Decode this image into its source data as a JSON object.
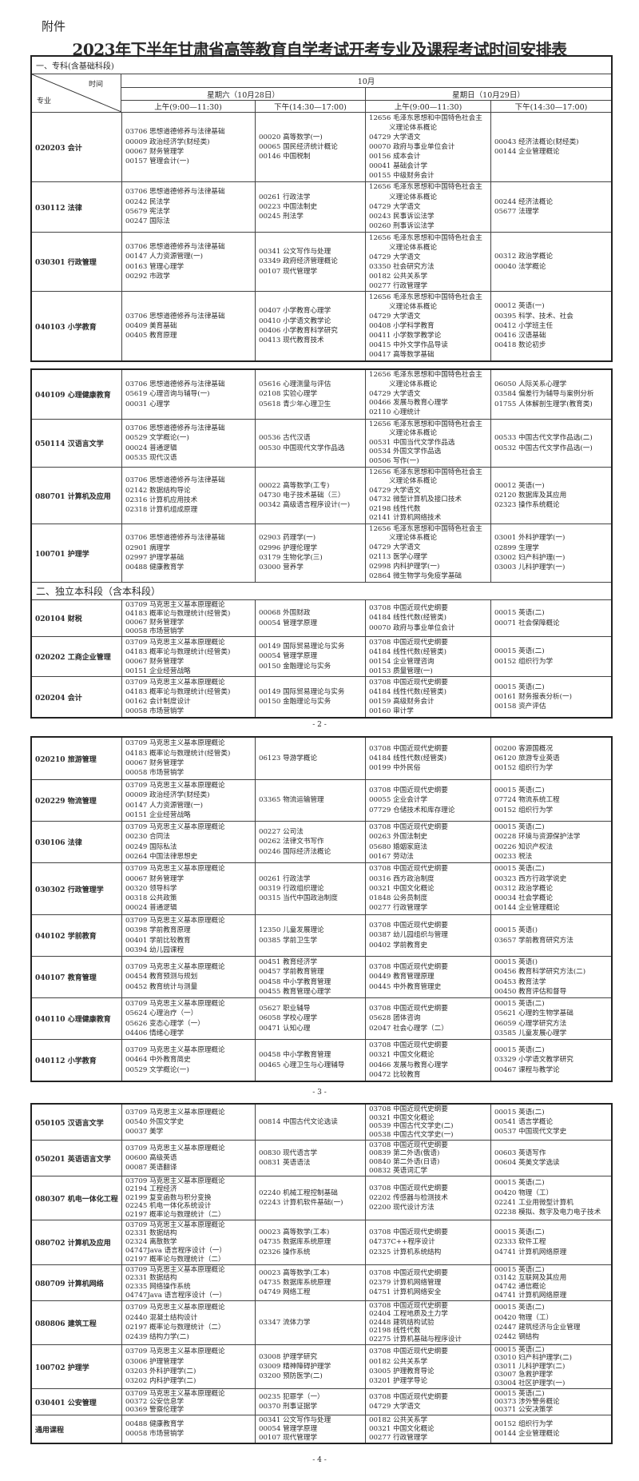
{
  "attachment_label": "附件",
  "title": "2023年下半年甘肃省高等教育自学考试开考专业及课程考试时间安排表",
  "header": {
    "time_label": "时间",
    "major_label": "专业",
    "month": "10月",
    "days": [
      "星期六（10月28日）",
      "星期日（10月29日）"
    ],
    "slots": [
      "上午(9:00—11:30)",
      "下午(14:30—17:00)"
    ]
  },
  "page_numbers": [
    "- 2 -",
    "- 3 -",
    "- 4 -"
  ],
  "tables": [
    {
      "rows": [
        {
          "section": "一、专科(含基础科段)"
        },
        {
          "major": "020203 会计",
          "cells": [
            [
              "03706 思想道德修养与法律基础",
              "00009 政治经济学(财经类)",
              "00067 财务管理学",
              "00157 管理会计(一)"
            ],
            [
              "00020 高等数学(一)",
              "00065 国民经济统计概论",
              "00146 中国税制"
            ],
            [
              "12656 毛泽东思想和中国特色社会主义理论体系概论",
              "04729 大学语文",
              "00070 政府与事业单位会计",
              "00156 成本会计",
              "00041 基础会计学",
              "00155 中级财务会计"
            ],
            [
              "00043 经济法概论(财经类)",
              "00144 企业管理概论"
            ]
          ]
        },
        {
          "major": "030112 法律",
          "cells": [
            [
              "03706 思想道德修养与法律基础",
              "00242 民法学",
              "05679 宪法学",
              "00247 国际法"
            ],
            [
              "00261 行政法学",
              "00223 中国法制史",
              "00245 刑法学"
            ],
            [
              "12656 毛泽东思想和中国特色社会主义理论体系概论",
              "04729 大学语文",
              "00243 民事诉讼法学",
              "00260 刑事诉讼法学"
            ],
            [
              "00244 经济法概论",
              "05677 法理学"
            ]
          ]
        },
        {
          "major": "030301 行政管理",
          "cells": [
            [
              "03706 思想道德修养与法律基础",
              "00147 人力资源管理(一)",
              "00163 管理心理学",
              "00292 市政学"
            ],
            [
              "00341 公文写作与处理",
              "03349 政府经济管理概论",
              "00107 现代管理学"
            ],
            [
              "12656 毛泽东思想和中国特色社会主义理论体系概论",
              "04729 大学语文",
              "03350 社会研究方法",
              "00182 公共关系学",
              "00277 行政管理学"
            ],
            [
              "00312 政治学概论",
              "00040 法学概论"
            ]
          ]
        },
        {
          "major": "040103 小学教育",
          "cells": [
            [
              "03706 思想道德修养与法律基础",
              "00409 美育基础",
              "00405 教育原理"
            ],
            [
              "00407 小学教育心理学",
              "00410 小学语文教学论",
              "00406 小学教育科学研究",
              "00413 现代教育技术"
            ],
            [
              "12656 毛泽东思想和中国特色社会主义理论体系概论",
              "04729 大学语文",
              "00408 小学科学教育",
              "00411 小学数学教学论",
              "00415 中外文学作品导读",
              "00417 高等数学基础"
            ],
            [
              "00012 英语(一)",
              "00395 科学、技术、社会",
              "00412 小学班主任",
              "00416 汉语基础",
              "00418 数论初步"
            ]
          ]
        }
      ]
    },
    {
      "rows": [
        {
          "major": "040109 心理健康教育",
          "cells": [
            [
              "03706 思想道德修养与法律基础",
              "05619 心理咨询与辅导(一)",
              "00031 心理学"
            ],
            [
              "05616 心理测量与评估",
              "02108 实验心理学",
              "05618 青少年心理卫生"
            ],
            [
              "12656 毛泽东思想和中国特色社会主义理论体系概论",
              "04729 大学语文",
              "00466 发展与教育心理学",
              "02110 心理统计"
            ],
            [
              "06050 人际关系心理学",
              "03584 偏差行为辅导与案例分析",
              "01755 人体解剖生理学(教育类)"
            ]
          ]
        },
        {
          "major": "050114 汉语言文学",
          "cells": [
            [
              "03706 思想道德修养与法律基础",
              "00529 文学概论(一)",
              "00024 普通逻辑",
              "00535 现代汉语"
            ],
            [
              "00536 古代汉语",
              "00530 中国现代文学作品选"
            ],
            [
              "12656 毛泽东思想和中国特色社会主义理论体系概论",
              "00531 中国当代文学作品选",
              "00534 外国文学作品选",
              "00506 写作(一)"
            ],
            [
              "00533 中国古代文学作品选(二)",
              "00532 中国古代文学作品选(一)"
            ]
          ]
        },
        {
          "major": "080701 计算机及应用",
          "cells": [
            [
              "03706 思想道德修养与法律基础",
              "02142 数据结构导论",
              "02316 计算机应用技术",
              "02318 计算机组成原理"
            ],
            [
              "00022 高等数学(工专)",
              "04730 电子技术基础（三）",
              "00342 高级语言程序设计(一)"
            ],
            [
              "12656 毛泽东思想和中国特色社会主义理论体系概论",
              "04729 大学语文",
              "04732 微型计算机及接口技术",
              "02198 线性代数",
              "02141 计算机网络技术"
            ],
            [
              "00012 英语(一)",
              "02120 数据库及其应用",
              "02323 操作系统概论"
            ]
          ]
        },
        {
          "major": "100701 护理学",
          "cells": [
            [
              "03706 思想道德修养与法律基础",
              "02901 病理学",
              "02997 护理学基础",
              "00488 健康教育学"
            ],
            [
              "02903 药理学(一)",
              "02996 护理伦理学",
              "03179 生物化学(三)",
              "03000 营养学"
            ],
            [
              "12656 毛泽东思想和中国特色社会主义理论体系概论",
              "04729 大学语文",
              "02113 医学心理学",
              "02998 内科护理学(一)",
              "02864 微生物学与免疫学基础"
            ],
            [
              "03001 外科护理学(一)",
              "02899 生理学",
              "03002 妇产科护理(一)",
              "03003 儿科护理学(一)"
            ]
          ]
        },
        {
          "section": "二、独立本科段（含本科段）"
        },
        {
          "major": "020104 财税",
          "cells": [
            [
              "03709 马克思主义基本原理概论",
              "04183 概率论与数理统计(经管类)",
              "00067 财务管理学",
              "00058 市场营销学"
            ],
            [
              "00068 外国财政",
              "00054 管理学原理"
            ],
            [
              "03708 中国近现代史纲要",
              "04184 线性代数(经管类)",
              "00070 政府与事业单位会计"
            ],
            [
              "00015 英语(二)",
              "00071 社会保障概论"
            ]
          ]
        },
        {
          "major": "020202 工商企业管理",
          "cells": [
            [
              "03709 马克思主义基本原理概论",
              "04183 概率论与数理统计(经管类)",
              "00067 财务管理学",
              "00151 企业经营战略"
            ],
            [
              "00149 国际贸易理论与实务",
              "00054 管理学原理",
              "00150 金融理论与实务"
            ],
            [
              "03708 中国近现代史纲要",
              "04184 线性代数(经管类)",
              "00154 企业管理咨询",
              "00153 质量管理(一)"
            ],
            [
              "00015 英语(二)",
              "00152 组织行为学"
            ]
          ]
        },
        {
          "major": "020204 会计",
          "cells": [
            [
              "03709 马克思主义基本原理概论",
              "04183 概率论与数理统计(经管类)",
              "00162 会计制度设计",
              "00058 市场营销学"
            ],
            [
              "00149 国际贸易理论与实务",
              "00150 金融理论与实务"
            ],
            [
              "03708 中国近现代史纲要",
              "04184 线性代数(经管类)",
              "00159 高级财务会计",
              "00160 审计学"
            ],
            [
              "00015 英语(二)",
              "00161 财务报表分析(一)",
              "00158 资产评估"
            ]
          ]
        }
      ]
    },
    {
      "rows": [
        {
          "major": "020210 旅游管理",
          "cells": [
            [
              "03709 马克思主义基本原理概论",
              "04183 概率论与数理统计(经管类)",
              "00067 财务管理学",
              "00058 市场营销学"
            ],
            [
              "06123 导游学概论"
            ],
            [
              "03708 中国近现代史纲要",
              "04184 线性代数(经管类)",
              "00199 中外民俗"
            ],
            [
              "00200 客源国概况",
              "06120 旅游专业英语",
              "00152 组织行为学"
            ]
          ]
        },
        {
          "major": "020229 物流管理",
          "cells": [
            [
              "03709 马克思主义基本原理概论",
              "00009 政治经济学(财经类)",
              "00147 人力资源管理(一)",
              "00151 企业经营战略"
            ],
            [
              "03365 物流运输管理"
            ],
            [
              "03708 中国近现代史纲要",
              "00055 企业会计学",
              "07729 仓储技术和库存理论"
            ],
            [
              "00015 英语(二)",
              "07724 物流系统工程",
              "00152 组织行为学"
            ]
          ]
        },
        {
          "major": "030106 法律",
          "cells": [
            [
              "03709 马克思主义基本原理概论",
              "00230 合同法",
              "00249 国际私法",
              "00264 中国法律思想史"
            ],
            [
              "00227 公司法",
              "00262 法律文书写作",
              "00246 国际经济法概论"
            ],
            [
              "03708 中国近现代史纲要",
              "00263 外国法制史",
              "05680 婚姻家庭法",
              "00167 劳动法"
            ],
            [
              "00015 英语(二)",
              "00228 环境与资源保护法学",
              "00226 知识产权法",
              "00233 税法"
            ]
          ]
        },
        {
          "major": "030302 行政管理学",
          "cells": [
            [
              "03709 马克思主义基本原理概论",
              "00067 财务管理学",
              "00320 领导科学",
              "00318 公共政策",
              "00024 普通逻辑"
            ],
            [
              "00261 行政法学",
              "00319 行政组织理论",
              "00315 当代中国政治制度"
            ],
            [
              "03708 中国近现代史纲要",
              "00316 西方政治制度",
              "00321 中国文化概论",
              "01848 公务员制度",
              "00277 行政管理学"
            ],
            [
              "00015 英语(二)",
              "00323 西方行政学说史",
              "00312 政治学概论",
              "00034 社会学概论",
              "00144 企业管理概论"
            ]
          ]
        },
        {
          "major": "040102 学前教育",
          "cells": [
            [
              "03709 马克思主义基本原理概论",
              "00398 学前教育原理",
              "00401 学前比较教育",
              "00394 幼儿园课程"
            ],
            [
              "12350 儿童发展理论",
              "00385 学前卫生学"
            ],
            [
              "03708 中国近现代史纲要",
              "00387 幼儿园组织与管理",
              "00402 学前教育史"
            ],
            [
              "00015 英语()",
              "03657 学前教育研究方法"
            ]
          ]
        },
        {
          "major": "040107 教育管理",
          "cells": [
            [
              "03709 马克思主义基本原理概论",
              "00454 教育预测与规划",
              "00452 教育统计与测量"
            ],
            [
              "00451 教育经济学",
              "00457 学前教育管理",
              "00458 中小学教育管理",
              "00455 教育管理心理学"
            ],
            [
              "03708 中国近现代史纲要",
              "00449 教育管理原理",
              "00445 中外教育管理史"
            ],
            [
              "00015 英语()",
              "00456 教育科学研究方法(二)",
              "00453 教育法学",
              "00450 教育评估和督导"
            ]
          ]
        },
        {
          "major": "040110 心理健康教育",
          "cells": [
            [
              "03709 马克思主义基本原理概论",
              "05624 心理治疗（一）",
              "05626 变态心理学（一）",
              "04406 情绪心理学"
            ],
            [
              "05627 职业辅导",
              "06058 学校心理学",
              "00471 认知心理"
            ],
            [
              "03708 中国近现代史纲要",
              "05628 团体咨询",
              "02047 社会心理学（二）"
            ],
            [
              "00015 英语(二)",
              "05621 心理的生物学基础",
              "06059 心理学研究方法",
              "03585 儿童发展心理学"
            ]
          ]
        },
        {
          "major": "040112 小学教育",
          "cells": [
            [
              "03709 马克思主义基本原理概论",
              "00464 中外教育简史",
              "00529 文学概论(一)"
            ],
            [
              "00458 中小学教育管理",
              "00465 心理卫生与心理辅导"
            ],
            [
              "03708 中国近现代史纲要",
              "00321 中国文化概论",
              "00466 发展与教育心理学",
              "00472 比较教育"
            ],
            [
              "00015 英语(二)",
              "03329 小学语文教学研究",
              "00467 课程与教学论"
            ]
          ]
        }
      ]
    },
    {
      "rows": [
        {
          "major": "050105 汉语言文学",
          "cells": [
            [
              "03709 马克思主义基本原理概论",
              "00540 外国文学史",
              "00037 美学"
            ],
            [
              "00814 中国古代文论选读"
            ],
            [
              "03708 中国近现代史纲要",
              "00321 中国文化概论",
              "00539 中国古代文学史(二)",
              "00538 中国古代文学史(一)"
            ],
            [
              "00015 英语(二)",
              "00541 语言学概论",
              "00537 中国现代文学史"
            ]
          ]
        },
        {
          "major": "050201 英语语言文学",
          "cells": [
            [
              "03709 马克思主义基本原理概论",
              "00600 高级英语",
              "00087 英语翻译"
            ],
            [
              "00830 现代语言学",
              "00831 英语语法"
            ],
            [
              "03708 中国近现代史纲要",
              "00839 第二外语(俄语)",
              "00840 第二外语(日语)",
              "00832 英语词汇学"
            ],
            [
              "00603 英语写作",
              "00604 英美文学选读"
            ]
          ]
        },
        {
          "major": "080307 机电一体化工程",
          "cells": [
            [
              "03709 马克思主义基本原理概论",
              "02194 工程经济",
              "02199 复变函数与积分变换",
              "02245 机电一体化系统设计",
              "02197 概率论与数理统计（二）"
            ],
            [
              "02240 机械工程控制基础",
              "02243 计算机软件基础(一)"
            ],
            [
              "03708 中国近现代史纲要",
              "02202 传感器与检测技术",
              "02200 现代设计方法"
            ],
            [
              "00015 英语(二)",
              "00420 物理（工）",
              "02241 工业用微型计算机",
              "02238 模拟、数字及电力电子技术"
            ]
          ]
        },
        {
          "major": "080702 计算机及应用",
          "cells": [
            [
              "03709 马克思主义基本原理概论",
              "02331 数据结构",
              "02324 离散数学",
              "04747Java 语言程序设计（一）",
              "02197 概率论与数理统计（二）"
            ],
            [
              "00023 高等数学(工本)",
              "04735 数据库系统原理",
              "02326 操作系统"
            ],
            [
              "03708 中国近现代史纲要",
              "04737C++程序设计",
              "02325 计算机系统结构"
            ],
            [
              "00015 英语(二)",
              "02333 软件工程",
              "04741 计算机网络原理"
            ]
          ]
        },
        {
          "major": "080709 计算机网络",
          "cells": [
            [
              "03709 马克思主义基本原理概论",
              "02331 数据结构",
              "02335 网络操作系统",
              "04747Java 语言程序设计（一）"
            ],
            [
              "00023 高等数学(工本)",
              "04735 数据库系统原理",
              "04749 网络工程"
            ],
            [
              "03708 中国近现代史纲要",
              "02379 计算机网络管理",
              "04751 计算机网络安全"
            ],
            [
              "00015 英语(二)",
              "03142 互联网及其应用",
              "04742 通信概论",
              "04741 计算机网络原理"
            ]
          ]
        },
        {
          "major": "080806 建筑工程",
          "cells": [
            [
              "03709 马克思主义基本原理概论",
              "02440 混凝土结构设计",
              "02197 概率论与数理统计（二）",
              "02439 结构力学(二)"
            ],
            [
              "03347 流体力学"
            ],
            [
              "03708 中国近现代史纲要",
              "02404 工程地质及土力学",
              "02448 建筑结构试验",
              "02198 线性代数",
              "02275 计算机基础与程序设计"
            ],
            [
              "00015 英语(二)",
              "00420 物理（工）",
              "02447 建筑经济与企业管理",
              "02442 钢结构"
            ]
          ]
        },
        {
          "major": "100702 护理学",
          "cells": [
            [
              "03709 马克思主义基本原理概论",
              "03006 护理管理学",
              "03203 外科护理学(二)",
              "03202 内科护理学(二)"
            ],
            [
              "03008 护理学研究",
              "03009 精神障碍护理学",
              "03200 预防医学(二)"
            ],
            [
              "03708 中国近现代史纲要",
              "00182 公共关系学",
              "03005 护理教育导论",
              "03201 护理学导论"
            ],
            [
              "00015 英语(二)",
              "03010 妇产科护理学(二)",
              "03011 儿科护理学(二)",
              "03007 急救护理学",
              "03004 社区护理学(一)"
            ]
          ]
        },
        {
          "major": "030401 公安管理",
          "cells": [
            [
              "03709 马克思主义基本原理概论",
              "00372 公安信息学",
              "00369 警察伦理学"
            ],
            [
              "00235 犯罪学（一）",
              "00370 刑事证据学"
            ],
            [
              "03708 中国近现代史纲要",
              "04729 大学语文"
            ],
            [
              "00015 英语(二)",
              "00373 涉外警务概论",
              "00371 公安决策学"
            ]
          ]
        },
        {
          "major": "通用课程",
          "cells": [
            [
              "00488 健康教育学",
              "00058 市场营销学"
            ],
            [
              "00341 公文写作与处理",
              "00054 管理学原理",
              "00107 现代管理学"
            ],
            [
              "00182 公共关系学",
              "00321 中国文化概论",
              "00277 行政管理学"
            ],
            [
              "00152 组织行为学",
              "00144 企业管理概论"
            ]
          ]
        }
      ]
    }
  ]
}
